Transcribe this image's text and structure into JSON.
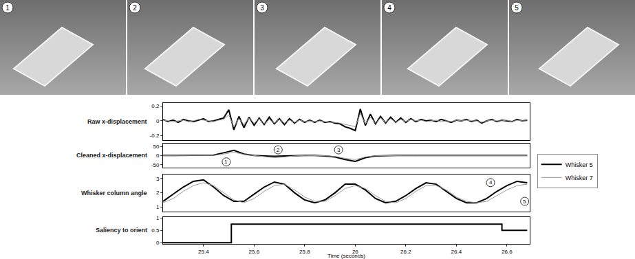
{
  "photos": {
    "labels": [
      "1",
      "2",
      "3",
      "4",
      "5"
    ]
  },
  "chart_data": [
    {
      "type": "line",
      "ylabel": "Raw x-displacement",
      "legend": "right",
      "tick_labels": "y",
      "x": [
        25.24,
        25.26,
        25.28,
        25.3,
        25.32,
        25.34,
        25.36,
        25.38,
        25.4,
        25.42,
        25.44,
        25.46,
        25.48,
        25.5,
        25.52,
        25.54,
        25.56,
        25.58,
        25.6,
        25.62,
        25.64,
        25.66,
        25.68,
        25.7,
        25.72,
        25.74,
        25.76,
        25.78,
        25.8,
        25.82,
        25.84,
        25.86,
        25.88,
        25.9,
        25.92,
        25.94,
        25.96,
        25.98,
        26,
        26.02,
        26.04,
        26.06,
        26.08,
        26.1,
        26.12,
        26.14,
        26.16,
        26.18,
        26.2,
        26.22,
        26.24,
        26.26,
        26.28,
        26.3,
        26.32,
        26.34,
        26.36,
        26.38,
        26.4,
        26.42,
        26.44,
        26.46,
        26.48,
        26.5,
        26.52,
        26.54,
        26.56,
        26.58,
        26.6,
        26.62,
        26.64,
        26.66,
        26.68
      ],
      "series": [
        {
          "name": "Whisker 5",
          "color": "#000000",
          "values": [
            0.02,
            -0.01,
            0.01,
            -0.02,
            0.02,
            0,
            -0.01,
            0.01,
            0.03,
            -0.01,
            0,
            0.02,
            0.04,
            0.15,
            -0.12,
            0.06,
            -0.09,
            0.05,
            -0.06,
            0.04,
            -0.05,
            0.05,
            -0.04,
            0.03,
            -0.05,
            0.03,
            -0.03,
            0.02,
            -0.02,
            0.01,
            -0.02,
            0.01,
            -0.02,
            -0.01,
            -0.03,
            -0.04,
            -0.08,
            -0.1,
            -0.13,
            0.16,
            -0.06,
            0.09,
            -0.04,
            0.06,
            -0.03,
            0.05,
            -0.02,
            0.04,
            -0.02,
            0.03,
            -0.01,
            0.02,
            0,
            0.01,
            -0.01,
            0.02,
            0,
            -0.02,
            0.01,
            0,
            0.02,
            -0.01,
            0.01,
            -0.03,
            0,
            0.02,
            -0.01,
            0.01,
            0,
            -0.01,
            0.02,
            0,
            0.01
          ]
        },
        {
          "name": "Whisker 7",
          "color": "#999999",
          "values": [
            0.01,
            0,
            -0.01,
            0,
            0.01,
            -0.01,
            0,
            0.02,
            0.01,
            0,
            -0.01,
            0.01,
            0.02,
            0.08,
            -0.08,
            0.03,
            -0.05,
            0.04,
            -0.03,
            0.03,
            -0.04,
            0.02,
            -0.03,
            0.02,
            -0.03,
            0.01,
            -0.02,
            0.01,
            -0.01,
            0,
            -0.01,
            0,
            -0.01,
            -0.02,
            -0.02,
            -0.03,
            -0.05,
            -0.06,
            -0.08,
            0.1,
            -0.04,
            0.05,
            -0.03,
            0.04,
            -0.02,
            0.03,
            -0.02,
            0.02,
            -0.01,
            0.02,
            0,
            0.01,
            -0.01,
            0,
            0.01,
            -0.01,
            0,
            -0.01,
            0.01,
            0,
            0.01,
            0,
            0,
            -0.02,
            0,
            0.01,
            0,
            0,
            0.01,
            -0.01,
            0.01,
            0,
            0
          ]
        }
      ],
      "xlim": [
        25.24,
        26.69
      ],
      "ylim": [
        -0.26,
        0.24
      ],
      "yticks": [
        -0.2,
        0,
        0.2
      ]
    },
    {
      "type": "line",
      "ylabel": "Cleaned x-displacement",
      "tick_labels": "y",
      "x": [
        25.24,
        25.28,
        25.32,
        25.36,
        25.4,
        25.44,
        25.48,
        25.52,
        25.56,
        25.6,
        25.64,
        25.68,
        25.72,
        25.76,
        25.8,
        25.84,
        25.88,
        25.92,
        25.96,
        26,
        26.04,
        26.08,
        26.12,
        26.16,
        26.2,
        26.24,
        26.28,
        26.32,
        26.36,
        26.4,
        26.44,
        26.48,
        26.52,
        26.56,
        26.6,
        26.64,
        26.68
      ],
      "series": [
        {
          "name": "Whisker 5",
          "color": "#000000",
          "values": [
            0,
            0,
            1,
            0,
            0,
            2,
            15,
            28,
            8,
            0,
            -2,
            -4,
            -2,
            0,
            0,
            0,
            -2,
            -8,
            -22,
            -32,
            -12,
            -2,
            0,
            0,
            0,
            0,
            0,
            0,
            0,
            0,
            0,
            0,
            0,
            0,
            0,
            0,
            0
          ]
        },
        {
          "name": "Whisker 7",
          "color": "#999999",
          "values": [
            0,
            0,
            0,
            0,
            0,
            1,
            8,
            18,
            6,
            0,
            -6,
            -12,
            -8,
            -2,
            0,
            0,
            -1,
            -5,
            -15,
            -22,
            -8,
            -1,
            0,
            0,
            0,
            0,
            0,
            0,
            0,
            0,
            0,
            0,
            0,
            0,
            0,
            0,
            0
          ]
        }
      ],
      "annotations": [
        {
          "text": "1",
          "x": 25.49,
          "y": -35
        },
        {
          "text": "2",
          "x": 25.695,
          "y": 31
        },
        {
          "text": "3",
          "x": 25.934,
          "y": 31
        }
      ],
      "xlim": [
        25.24,
        26.69
      ],
      "ylim": [
        -65,
        65
      ],
      "yticks": [
        -50,
        0,
        50
      ]
    },
    {
      "type": "line",
      "ylabel": "Whisker column angle",
      "tick_labels": "y",
      "x": [
        25.24,
        25.28,
        25.32,
        25.36,
        25.4,
        25.44,
        25.48,
        25.52,
        25.56,
        25.6,
        25.64,
        25.68,
        25.72,
        25.76,
        25.8,
        25.84,
        25.88,
        25.92,
        25.96,
        26,
        26.04,
        26.08,
        26.12,
        26.16,
        26.2,
        26.24,
        26.28,
        26.32,
        26.36,
        26.4,
        26.44,
        26.48,
        26.52,
        26.56,
        26.6,
        26.64,
        26.68
      ],
      "series": [
        {
          "name": "Whisker 5",
          "color": "#000000",
          "values": [
            1.4,
            1.9,
            2.4,
            2.8,
            2.9,
            2.4,
            1.8,
            1.4,
            1.4,
            1.9,
            2.4,
            2.75,
            2.6,
            2.0,
            1.5,
            1.3,
            1.5,
            2.0,
            2.6,
            2.6,
            2.2,
            1.6,
            1.3,
            1.4,
            1.8,
            2.3,
            2.7,
            2.6,
            2.1,
            1.6,
            1.3,
            1.3,
            1.6,
            2.1,
            2.5,
            2.8,
            2.7
          ]
        },
        {
          "name": "Whisker 7",
          "color": "#999999",
          "values": [
            1.3,
            1.6,
            2.1,
            2.5,
            2.7,
            2.5,
            2.0,
            1.5,
            1.3,
            1.6,
            2.1,
            2.5,
            2.6,
            2.2,
            1.7,
            1.4,
            1.4,
            1.8,
            2.3,
            2.5,
            2.3,
            1.8,
            1.4,
            1.3,
            1.6,
            2.1,
            2.5,
            2.5,
            2.2,
            1.7,
            1.4,
            1.3,
            1.4,
            1.8,
            2.2,
            2.5,
            2.6
          ]
        }
      ],
      "annotations": [
        {
          "text": "4",
          "x": 26.535,
          "y": 2.71
        },
        {
          "text": "5",
          "x": 26.67,
          "y": 1.4
        }
      ],
      "xlim": [
        25.24,
        26.69
      ],
      "ylim": [
        0.7,
        3.3
      ],
      "yticks": [
        1,
        2,
        3
      ]
    },
    {
      "type": "line",
      "ylabel": "Saliency to orient",
      "xlabel": "Time (seconds)",
      "line_style": "step",
      "color": "#000000",
      "x": [
        25.24,
        25.51,
        26.58,
        26.68
      ],
      "values": [
        0,
        0.75,
        0.5,
        0.5
      ],
      "xlim": [
        25.24,
        26.69
      ],
      "xticks": [
        25.4,
        25.6,
        25.8,
        26,
        26.2,
        26.4,
        26.6
      ],
      "ylim": [
        -0.05,
        1.05
      ],
      "yticks": [
        0,
        0.5,
        1
      ]
    }
  ]
}
